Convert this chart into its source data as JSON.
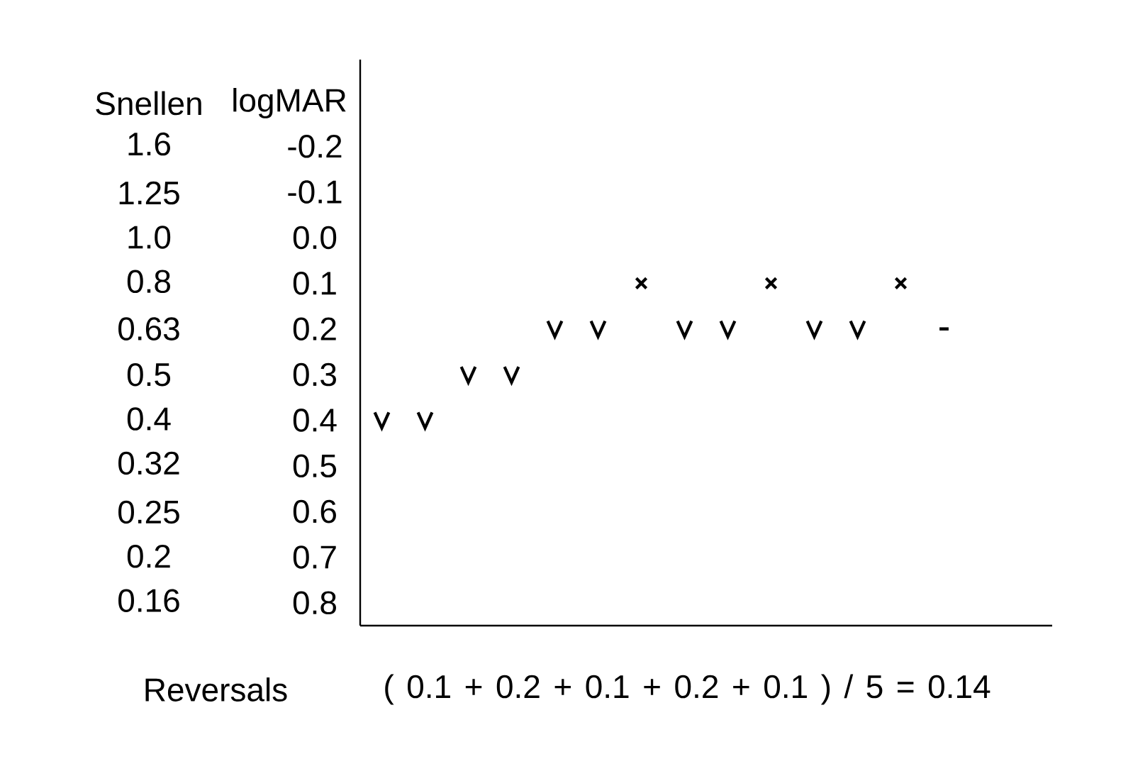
{
  "chart_data": {
    "type": "scatter",
    "ylabel": "logMAR",
    "y2label": "Snellen",
    "categories": [
      null,
      null,
      null,
      null,
      null,
      null,
      null,
      null,
      null,
      null,
      null,
      null,
      null,
      null,
      null,
      null
    ],
    "series": [
      {
        "color": "#000000",
        "values": [
          0.4,
          0.4,
          0.3,
          0.3,
          0.2,
          0.2,
          null,
          0.2,
          0.2,
          null,
          0.2,
          0.2,
          null,
          null,
          null,
          null
        ]
      },
      {
        "marker": "cross",
        "color": "#000000",
        "values": [
          null,
          null,
          null,
          null,
          null,
          null,
          0.1,
          null,
          null,
          0.1,
          null,
          null,
          0.1,
          null,
          null,
          null
        ]
      },
      {
        "marker": "square",
        "color": "#000000",
        "values": [
          null,
          null,
          null,
          null,
          null,
          null,
          null,
          null,
          null,
          null,
          null,
          null,
          null,
          0.2,
          null,
          null
        ]
      }
    ],
    "ylim": [
      0.85,
      -0.39
    ],
    "yticks": [
      -0.2,
      -0.1,
      {
        "value": 0,
        "label": "0.0"
      },
      0.1,
      0.2,
      0.3,
      0.4,
      0.5,
      0.6,
      0.7,
      0.8
    ],
    "y2lim": [
      0.141,
      2.45
    ],
    "log": "y2",
    "y2ticks": [
      1.6,
      1.25,
      {
        "value": 1,
        "label": "1.0"
      },
      0.8,
      0.63,
      0.5,
      0.4,
      0.32,
      0.25,
      0.2,
      0.16
    ],
    "annotations": [
      "Reversals",
      "( 0.1 + 0.2 + 0.1 + 0.2 + 0.1 ) / 5 = 0.14"
    ]
  }
}
